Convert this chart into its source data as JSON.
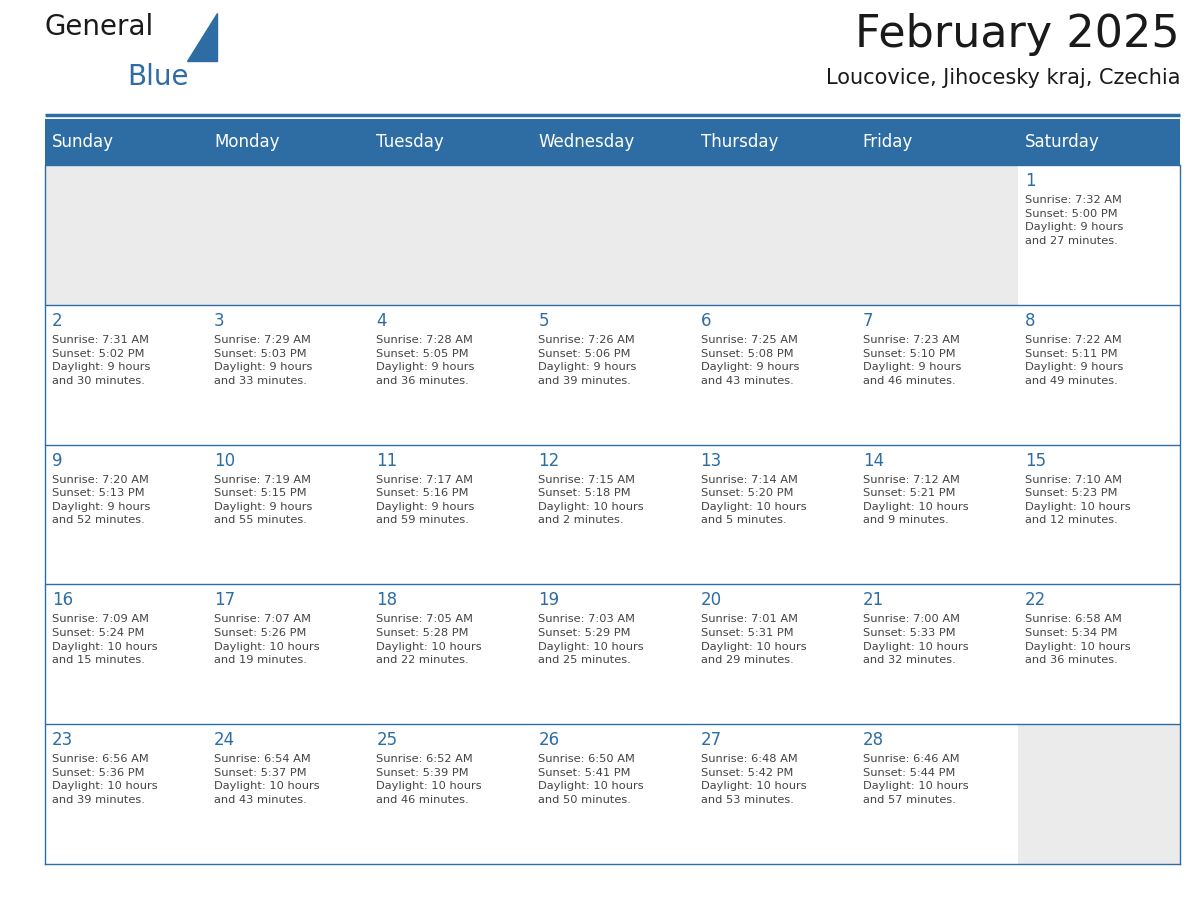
{
  "title": "February 2025",
  "subtitle": "Loucovice, Jihocesky kraj, Czechia",
  "header_bg": "#2E6DA4",
  "header_text": "#FFFFFF",
  "cell_bg_empty": "#EBEBEB",
  "cell_bg_filled": "#FFFFFF",
  "day_number_color": "#2E6DA4",
  "text_color": "#444444",
  "line_color": "#2E6DA4",
  "days_of_week": [
    "Sunday",
    "Monday",
    "Tuesday",
    "Wednesday",
    "Thursday",
    "Friday",
    "Saturday"
  ],
  "weeks": [
    [
      {
        "day": null,
        "info": null
      },
      {
        "day": null,
        "info": null
      },
      {
        "day": null,
        "info": null
      },
      {
        "day": null,
        "info": null
      },
      {
        "day": null,
        "info": null
      },
      {
        "day": null,
        "info": null
      },
      {
        "day": "1",
        "info": "Sunrise: 7:32 AM\nSunset: 5:00 PM\nDaylight: 9 hours\nand 27 minutes."
      }
    ],
    [
      {
        "day": "2",
        "info": "Sunrise: 7:31 AM\nSunset: 5:02 PM\nDaylight: 9 hours\nand 30 minutes."
      },
      {
        "day": "3",
        "info": "Sunrise: 7:29 AM\nSunset: 5:03 PM\nDaylight: 9 hours\nand 33 minutes."
      },
      {
        "day": "4",
        "info": "Sunrise: 7:28 AM\nSunset: 5:05 PM\nDaylight: 9 hours\nand 36 minutes."
      },
      {
        "day": "5",
        "info": "Sunrise: 7:26 AM\nSunset: 5:06 PM\nDaylight: 9 hours\nand 39 minutes."
      },
      {
        "day": "6",
        "info": "Sunrise: 7:25 AM\nSunset: 5:08 PM\nDaylight: 9 hours\nand 43 minutes."
      },
      {
        "day": "7",
        "info": "Sunrise: 7:23 AM\nSunset: 5:10 PM\nDaylight: 9 hours\nand 46 minutes."
      },
      {
        "day": "8",
        "info": "Sunrise: 7:22 AM\nSunset: 5:11 PM\nDaylight: 9 hours\nand 49 minutes."
      }
    ],
    [
      {
        "day": "9",
        "info": "Sunrise: 7:20 AM\nSunset: 5:13 PM\nDaylight: 9 hours\nand 52 minutes."
      },
      {
        "day": "10",
        "info": "Sunrise: 7:19 AM\nSunset: 5:15 PM\nDaylight: 9 hours\nand 55 minutes."
      },
      {
        "day": "11",
        "info": "Sunrise: 7:17 AM\nSunset: 5:16 PM\nDaylight: 9 hours\nand 59 minutes."
      },
      {
        "day": "12",
        "info": "Sunrise: 7:15 AM\nSunset: 5:18 PM\nDaylight: 10 hours\nand 2 minutes."
      },
      {
        "day": "13",
        "info": "Sunrise: 7:14 AM\nSunset: 5:20 PM\nDaylight: 10 hours\nand 5 minutes."
      },
      {
        "day": "14",
        "info": "Sunrise: 7:12 AM\nSunset: 5:21 PM\nDaylight: 10 hours\nand 9 minutes."
      },
      {
        "day": "15",
        "info": "Sunrise: 7:10 AM\nSunset: 5:23 PM\nDaylight: 10 hours\nand 12 minutes."
      }
    ],
    [
      {
        "day": "16",
        "info": "Sunrise: 7:09 AM\nSunset: 5:24 PM\nDaylight: 10 hours\nand 15 minutes."
      },
      {
        "day": "17",
        "info": "Sunrise: 7:07 AM\nSunset: 5:26 PM\nDaylight: 10 hours\nand 19 minutes."
      },
      {
        "day": "18",
        "info": "Sunrise: 7:05 AM\nSunset: 5:28 PM\nDaylight: 10 hours\nand 22 minutes."
      },
      {
        "day": "19",
        "info": "Sunrise: 7:03 AM\nSunset: 5:29 PM\nDaylight: 10 hours\nand 25 minutes."
      },
      {
        "day": "20",
        "info": "Sunrise: 7:01 AM\nSunset: 5:31 PM\nDaylight: 10 hours\nand 29 minutes."
      },
      {
        "day": "21",
        "info": "Sunrise: 7:00 AM\nSunset: 5:33 PM\nDaylight: 10 hours\nand 32 minutes."
      },
      {
        "day": "22",
        "info": "Sunrise: 6:58 AM\nSunset: 5:34 PM\nDaylight: 10 hours\nand 36 minutes."
      }
    ],
    [
      {
        "day": "23",
        "info": "Sunrise: 6:56 AM\nSunset: 5:36 PM\nDaylight: 10 hours\nand 39 minutes."
      },
      {
        "day": "24",
        "info": "Sunrise: 6:54 AM\nSunset: 5:37 PM\nDaylight: 10 hours\nand 43 minutes."
      },
      {
        "day": "25",
        "info": "Sunrise: 6:52 AM\nSunset: 5:39 PM\nDaylight: 10 hours\nand 46 minutes."
      },
      {
        "day": "26",
        "info": "Sunrise: 6:50 AM\nSunset: 5:41 PM\nDaylight: 10 hours\nand 50 minutes."
      },
      {
        "day": "27",
        "info": "Sunrise: 6:48 AM\nSunset: 5:42 PM\nDaylight: 10 hours\nand 53 minutes."
      },
      {
        "day": "28",
        "info": "Sunrise: 6:46 AM\nSunset: 5:44 PM\nDaylight: 10 hours\nand 57 minutes."
      },
      {
        "day": null,
        "info": null
      }
    ]
  ],
  "logo_general_color": "#1a1a1a",
  "logo_blue_color": "#2E6DA4",
  "title_fontsize": 32,
  "subtitle_fontsize": 15,
  "header_fontsize": 12,
  "day_num_fontsize": 12,
  "cell_text_fontsize": 8.2,
  "fig_width": 11.88,
  "fig_height": 9.18,
  "fig_dpi": 100
}
